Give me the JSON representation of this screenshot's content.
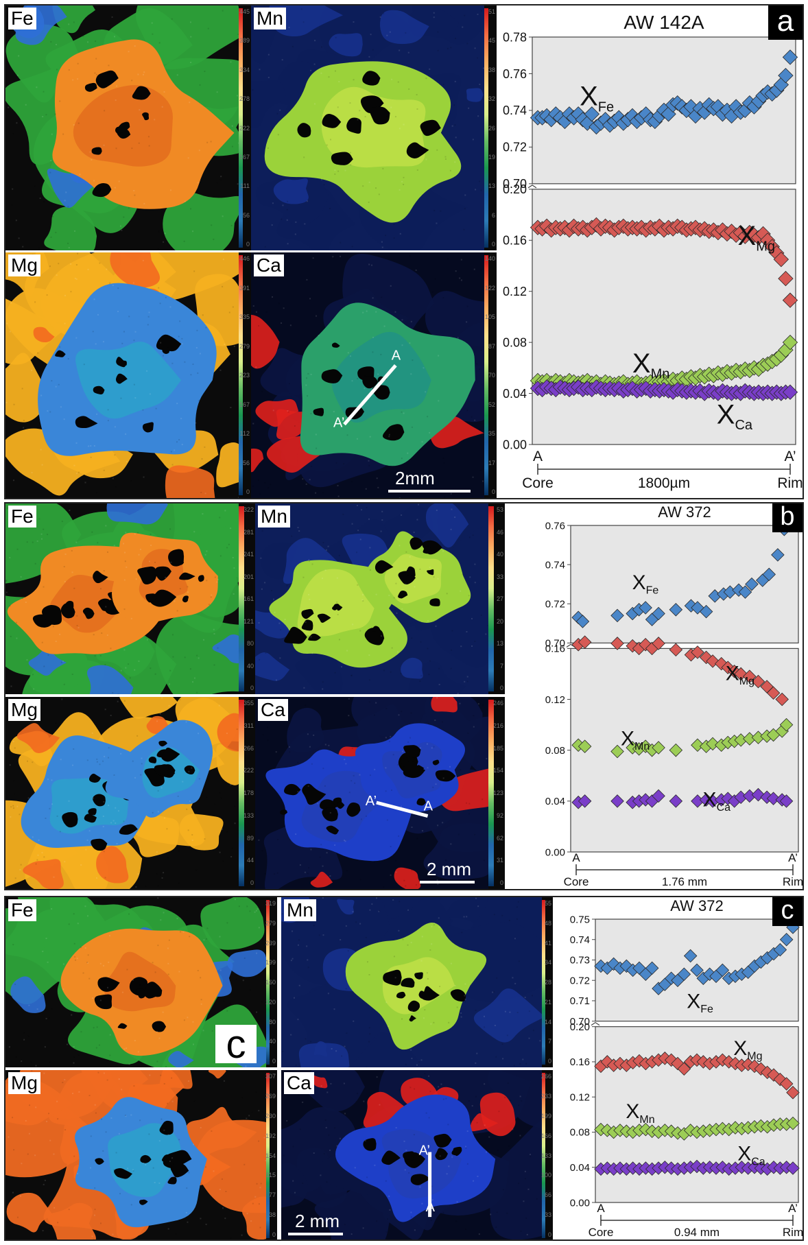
{
  "panels": [
    {
      "letter": "a",
      "sample": "AW 142A",
      "elements": [
        "Fe",
        "Mn",
        "Mg",
        "Ca"
      ],
      "profile_labels": {
        "start": "A",
        "end": "A’"
      },
      "scale_label": "2mm",
      "colorbars": {
        "Fe": [
          "445",
          "389",
          "334",
          "278",
          "222",
          "167",
          "111",
          "56",
          "0"
        ],
        "Mn": [
          "51",
          "45",
          "38",
          "32",
          "26",
          "19",
          "13",
          "6",
          "0"
        ],
        "Mg": [
          "446",
          "391",
          "335",
          "279",
          "223",
          "167",
          "112",
          "56",
          "0"
        ],
        "Ca": [
          "140",
          "122",
          "105",
          "87",
          "70",
          "52",
          "35",
          "17",
          "0"
        ]
      },
      "axis": {
        "start": "A",
        "end": "A’",
        "core": "Core",
        "rim": "Rim",
        "length": "1800µm"
      }
    },
    {
      "letter": "b",
      "sample": "AW 372",
      "elements": [
        "Fe",
        "Mn",
        "Mg",
        "Ca"
      ],
      "profile_labels": {
        "start": "A",
        "end": "A’"
      },
      "scale_label": "2 mm",
      "colorbars": {
        "Fe": [
          "322",
          "281",
          "241",
          "201",
          "161",
          "121",
          "80",
          "40",
          "0"
        ],
        "Mn": [
          "53",
          "46",
          "40",
          "33",
          "27",
          "20",
          "13",
          "7",
          "0"
        ],
        "Mg": [
          "355",
          "311",
          "266",
          "222",
          "178",
          "133",
          "89",
          "44",
          "0"
        ],
        "Ca": [
          "246",
          "216",
          "185",
          "154",
          "123",
          "92",
          "62",
          "31",
          "0"
        ]
      },
      "axis": {
        "start": "A",
        "end": "A’",
        "core": "Core",
        "rim": "Rim",
        "length": "1.76 mm"
      }
    },
    {
      "letter": "c",
      "sample": "AW 372",
      "big_letter": "c",
      "elements": [
        "Fe",
        "Mn",
        "Mg",
        "Ca"
      ],
      "profile_labels": {
        "start": "A",
        "end": "A’"
      },
      "scale_label": "2 mm",
      "colorbars": {
        "Fe": [
          "319",
          "279",
          "239",
          "199",
          "160",
          "120",
          "80",
          "40",
          "0"
        ],
        "Mn": [
          "55",
          "48",
          "41",
          "34",
          "28",
          "21",
          "14",
          "7",
          "0"
        ],
        "Mg": [
          "307",
          "269",
          "230",
          "192",
          "154",
          "115",
          "77",
          "38",
          "0"
        ],
        "Ca": [
          "266",
          "233",
          "199",
          "166",
          "133",
          "100",
          "66",
          "33",
          "0"
        ]
      },
      "axis": {
        "start": "A",
        "end": "A’",
        "core": "Core",
        "rim": "Rim",
        "length": "0.94 mm"
      }
    }
  ],
  "chart_data": [
    {
      "type": "scatter",
      "title": "AW 142A",
      "upper": {
        "ylim": [
          0.7,
          0.78
        ],
        "yticks": [
          "0.70",
          "0.72",
          "0.74",
          "0.76",
          "0.78"
        ],
        "series": [
          {
            "name": "Fe",
            "color": "#4a86c8",
            "values": [
              0.736,
              0.736,
              0.737,
              0.735,
              0.738,
              0.736,
              0.734,
              0.738,
              0.736,
              0.738,
              0.735,
              0.733,
              0.738,
              0.731,
              0.733,
              0.735,
              0.732,
              0.734,
              0.736,
              0.733,
              0.735,
              0.737,
              0.734,
              0.736,
              0.738,
              0.735,
              0.734,
              0.737,
              0.74,
              0.738,
              0.743,
              0.744,
              0.742,
              0.74,
              0.742,
              0.737,
              0.741,
              0.739,
              0.743,
              0.741,
              0.742,
              0.738,
              0.74,
              0.737,
              0.742,
              0.739,
              0.74,
              0.744,
              0.742,
              0.745,
              0.748,
              0.75,
              0.749,
              0.751,
              0.754,
              0.759,
              0.769
            ]
          }
        ]
      },
      "lower": {
        "ylim": [
          0.0,
          0.2
        ],
        "yticks": [
          "0.00",
          "0.04",
          "0.08",
          "0.12",
          "0.16",
          "0.20"
        ],
        "series": [
          {
            "name": "Mg",
            "color": "#d65a55",
            "values": [
              0.17,
              0.169,
              0.171,
              0.168,
              0.17,
              0.169,
              0.17,
              0.168,
              0.171,
              0.169,
              0.17,
              0.168,
              0.17,
              0.172,
              0.169,
              0.171,
              0.17,
              0.168,
              0.17,
              0.171,
              0.169,
              0.17,
              0.169,
              0.17,
              0.168,
              0.17,
              0.169,
              0.171,
              0.168,
              0.17,
              0.169,
              0.171,
              0.17,
              0.168,
              0.169,
              0.17,
              0.168,
              0.169,
              0.167,
              0.168,
              0.166,
              0.168,
              0.165,
              0.167,
              0.164,
              0.166,
              0.163,
              0.166,
              0.164,
              0.162,
              0.165,
              0.16,
              0.155,
              0.15,
              0.145,
              0.13,
              0.113
            ]
          },
          {
            "name": "Mn",
            "color": "#9ccd56",
            "values": [
              0.05,
              0.049,
              0.05,
              0.048,
              0.05,
              0.049,
              0.048,
              0.05,
              0.049,
              0.048,
              0.049,
              0.05,
              0.048,
              0.049,
              0.047,
              0.049,
              0.048,
              0.047,
              0.048,
              0.049,
              0.047,
              0.048,
              0.049,
              0.047,
              0.048,
              0.049,
              0.048,
              0.049,
              0.05,
              0.049,
              0.051,
              0.05,
              0.052,
              0.051,
              0.053,
              0.052,
              0.054,
              0.053,
              0.055,
              0.054,
              0.056,
              0.055,
              0.057,
              0.056,
              0.058,
              0.057,
              0.059,
              0.058,
              0.06,
              0.059,
              0.062,
              0.063,
              0.065,
              0.067,
              0.07,
              0.074,
              0.08
            ]
          },
          {
            "name": "Ca",
            "color": "#7a3ec8",
            "values": [
              0.044,
              0.043,
              0.045,
              0.044,
              0.043,
              0.045,
              0.044,
              0.043,
              0.044,
              0.045,
              0.043,
              0.044,
              0.043,
              0.045,
              0.044,
              0.043,
              0.044,
              0.043,
              0.044,
              0.042,
              0.043,
              0.044,
              0.042,
              0.043,
              0.044,
              0.042,
              0.043,
              0.042,
              0.043,
              0.042,
              0.041,
              0.043,
              0.042,
              0.041,
              0.042,
              0.041,
              0.042,
              0.04,
              0.042,
              0.041,
              0.04,
              0.042,
              0.041,
              0.04,
              0.041,
              0.04,
              0.042,
              0.041,
              0.04,
              0.041,
              0.04,
              0.041,
              0.04,
              0.041,
              0.04,
              0.041,
              0.041
            ]
          }
        ]
      },
      "xlabels": {
        "start": "A",
        "end": "A’",
        "core": "Core",
        "rim": "Rim",
        "length": "1800µm"
      }
    },
    {
      "type": "scatter",
      "title": "AW 372",
      "upper": {
        "ylim": [
          0.7,
          0.76
        ],
        "yticks": [
          "0.70",
          "0.72",
          "0.74",
          "0.76"
        ],
        "series": [
          {
            "name": "Fe",
            "color": "#4a86c8",
            "x": [
              0.01,
              0.03,
              0.19,
              0.26,
              0.29,
              0.32,
              0.35,
              0.38,
              0.46,
              0.53,
              0.56,
              0.6,
              0.64,
              0.68,
              0.71,
              0.75,
              0.78,
              0.81,
              0.86,
              0.89,
              0.93,
              0.96
            ],
            "values": [
              0.713,
              0.711,
              0.714,
              0.715,
              0.717,
              0.718,
              0.712,
              0.715,
              0.717,
              0.719,
              0.718,
              0.716,
              0.724,
              0.725,
              0.726,
              0.727,
              0.726,
              0.73,
              0.732,
              0.735,
              0.745,
              0.758
            ]
          }
        ]
      },
      "lower": {
        "ylim": [
          0.0,
          0.16
        ],
        "yticks": [
          "0.00",
          "0.04",
          "0.08",
          "0.12",
          "0.16"
        ],
        "series": [
          {
            "name": "Mg",
            "color": "#d65a55",
            "x": [
              0.01,
              0.04,
              0.19,
              0.26,
              0.29,
              0.32,
              0.35,
              0.38,
              0.46,
              0.53,
              0.56,
              0.6,
              0.63,
              0.67,
              0.7,
              0.73,
              0.76,
              0.8,
              0.84,
              0.88,
              0.91,
              0.95
            ],
            "values": [
              0.163,
              0.165,
              0.164,
              0.162,
              0.16,
              0.163,
              0.16,
              0.164,
              0.159,
              0.155,
              0.157,
              0.153,
              0.15,
              0.148,
              0.145,
              0.142,
              0.14,
              0.138,
              0.134,
              0.13,
              0.125,
              0.12
            ]
          },
          {
            "name": "Mn",
            "color": "#9ccd56",
            "x": [
              0.01,
              0.04,
              0.19,
              0.26,
              0.29,
              0.32,
              0.35,
              0.38,
              0.46,
              0.56,
              0.6,
              0.63,
              0.67,
              0.7,
              0.73,
              0.76,
              0.8,
              0.84,
              0.88,
              0.91,
              0.95,
              0.97
            ],
            "values": [
              0.084,
              0.083,
              0.079,
              0.082,
              0.081,
              0.083,
              0.08,
              0.082,
              0.08,
              0.084,
              0.083,
              0.085,
              0.084,
              0.086,
              0.087,
              0.088,
              0.089,
              0.09,
              0.091,
              0.092,
              0.095,
              0.1
            ]
          },
          {
            "name": "Ca",
            "color": "#7a3ec8",
            "x": [
              0.01,
              0.04,
              0.19,
              0.26,
              0.29,
              0.32,
              0.35,
              0.38,
              0.46,
              0.56,
              0.6,
              0.63,
              0.67,
              0.7,
              0.73,
              0.76,
              0.8,
              0.84,
              0.88,
              0.91,
              0.95,
              0.97
            ],
            "values": [
              0.039,
              0.04,
              0.04,
              0.039,
              0.04,
              0.041,
              0.04,
              0.044,
              0.04,
              0.04,
              0.041,
              0.04,
              0.041,
              0.042,
              0.04,
              0.043,
              0.044,
              0.045,
              0.043,
              0.042,
              0.041,
              0.04
            ]
          }
        ]
      },
      "xlabels": {
        "start": "A",
        "end": "A’",
        "core": "Core",
        "rim": "Rim",
        "length": "1.76 mm"
      }
    },
    {
      "type": "scatter",
      "title": "AW 372",
      "upper": {
        "ylim": [
          0.7,
          0.75
        ],
        "yticks": [
          "0.70",
          "0.71",
          "0.72",
          "0.73",
          "0.74",
          "0.75"
        ],
        "series": [
          {
            "name": "Fe",
            "color": "#4a86c8",
            "values": [
              0.727,
              0.726,
              0.728,
              0.726,
              0.727,
              0.725,
              0.726,
              0.723,
              0.726,
              0.716,
              0.718,
              0.721,
              0.72,
              0.723,
              0.732,
              0.725,
              0.721,
              0.723,
              0.722,
              0.725,
              0.721,
              0.722,
              0.723,
              0.724,
              0.727,
              0.729,
              0.731,
              0.733,
              0.735,
              0.74,
              0.746
            ]
          }
        ]
      },
      "lower": {
        "ylim": [
          0.0,
          0.2
        ],
        "yticks": [
          "0.00",
          "0.04",
          "0.08",
          "0.12",
          "0.16",
          "0.20"
        ],
        "series": [
          {
            "name": "Mg",
            "color": "#d65a55",
            "values": [
              0.155,
              0.16,
              0.156,
              0.158,
              0.156,
              0.159,
              0.161,
              0.158,
              0.16,
              0.162,
              0.164,
              0.162,
              0.158,
              0.152,
              0.16,
              0.162,
              0.16,
              0.158,
              0.16,
              0.162,
              0.16,
              0.158,
              0.156,
              0.157,
              0.155,
              0.152,
              0.148,
              0.145,
              0.14,
              0.135,
              0.125
            ]
          },
          {
            "name": "Mn",
            "color": "#9ccd56",
            "values": [
              0.083,
              0.082,
              0.08,
              0.082,
              0.081,
              0.08,
              0.082,
              0.083,
              0.081,
              0.08,
              0.082,
              0.081,
              0.079,
              0.078,
              0.082,
              0.08,
              0.081,
              0.082,
              0.083,
              0.084,
              0.083,
              0.085,
              0.084,
              0.085,
              0.086,
              0.087,
              0.086,
              0.088,
              0.089,
              0.089,
              0.09
            ]
          },
          {
            "name": "Ca",
            "color": "#7a3ec8",
            "values": [
              0.038,
              0.039,
              0.038,
              0.039,
              0.038,
              0.039,
              0.038,
              0.039,
              0.038,
              0.039,
              0.04,
              0.039,
              0.038,
              0.039,
              0.04,
              0.041,
              0.039,
              0.04,
              0.039,
              0.04,
              0.038,
              0.039,
              0.04,
              0.039,
              0.04,
              0.039,
              0.038,
              0.04,
              0.039,
              0.04,
              0.039
            ]
          }
        ]
      },
      "xlabels": {
        "start": "A",
        "end": "A’",
        "core": "Core",
        "rim": "Rim",
        "length": "0.94 mm"
      }
    }
  ]
}
